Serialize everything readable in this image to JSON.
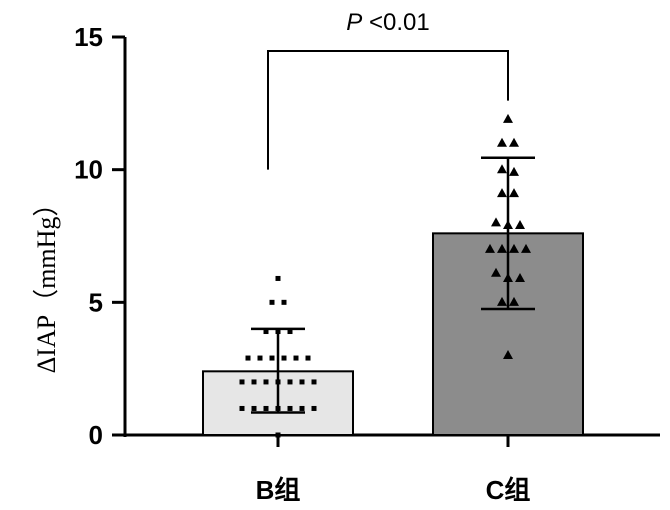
{
  "chart_data": {
    "type": "bar",
    "categories": [
      "B组",
      "C组"
    ],
    "ylabel": "ΔIAP（mmHg）",
    "ylim": [
      0,
      15
    ],
    "yticks": [
      0,
      5,
      10,
      15
    ],
    "ytick_labels": [
      "0",
      "5",
      "10",
      "15"
    ],
    "grid": false,
    "series": [
      {
        "values": [
          2.4,
          7.6
        ],
        "error_low": [
          0.85,
          4.75
        ],
        "error_high": [
          4.0,
          10.45
        ],
        "colors": [
          "#e6e6e6",
          "#8c8c8c"
        ]
      }
    ],
    "points": [
      {
        "category": "B组",
        "marker": "square",
        "values": [
          5.9,
          5.0,
          5.0,
          3.9,
          3.9,
          3.9,
          2.9,
          2.9,
          2.9,
          2.9,
          2.9,
          2.9,
          2.0,
          2.0,
          2.0,
          2.0,
          2.0,
          2.0,
          2.0,
          1.0,
          1.0,
          1.0,
          1.0,
          1.0,
          1.0,
          1.0,
          0.0
        ]
      },
      {
        "category": "C组",
        "marker": "triangle",
        "values": [
          11.9,
          11.0,
          11.0,
          10.0,
          9.9,
          9.1,
          9.1,
          8.0,
          7.9,
          7.9,
          7.0,
          7.0,
          7.0,
          7.0,
          6.1,
          5.9,
          5.9,
          5.0,
          5.0,
          3.0
        ]
      }
    ],
    "annotation": {
      "p_symbol": "P",
      "text": " <0.01"
    }
  }
}
